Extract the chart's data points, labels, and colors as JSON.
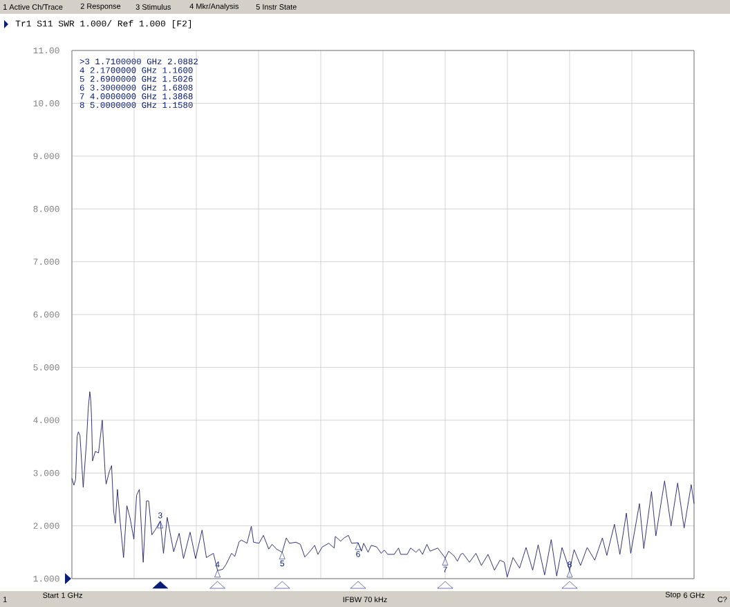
{
  "chart_data": {
    "type": "line",
    "title": "Tr1 S11 SWR 1.000/ Ref 1.000 [F2]",
    "xlim": [
      1,
      6
    ],
    "ylim": [
      1,
      11
    ],
    "xticks": [
      {
        "value": 1,
        "label": "1 GHz"
      },
      {
        "value": 1.5,
        "label": null
      },
      {
        "value": 2,
        "label": null
      },
      {
        "value": 2.5,
        "label": null
      },
      {
        "value": 3,
        "label": null
      },
      {
        "value": 3.5,
        "label": null
      },
      {
        "value": 4,
        "label": null
      },
      {
        "value": 4.5,
        "label": null
      },
      {
        "value": 5,
        "label": null
      },
      {
        "value": 5.5,
        "label": null
      },
      {
        "value": 6,
        "label": "6 GHz"
      }
    ],
    "yticks": [
      {
        "value": 1,
        "label": "1.000"
      },
      {
        "value": 2,
        "label": "2.000"
      },
      {
        "value": 3,
        "label": "3.000"
      },
      {
        "value": 4,
        "label": "4.000"
      },
      {
        "value": 5,
        "label": "5.000"
      },
      {
        "value": 6,
        "label": "6.000"
      },
      {
        "value": 7,
        "label": "7.000"
      },
      {
        "value": 8,
        "label": "8.000"
      },
      {
        "value": 9,
        "label": "9.000"
      },
      {
        "value": 10,
        "label": "10.00"
      },
      {
        "value": 11,
        "label": "11.00"
      }
    ],
    "grid": true,
    "series": [
      {
        "color": "#1c1c6a",
        "x": [
          1.0,
          1.016,
          1.03,
          1.042,
          1.052,
          1.065,
          1.091,
          1.117,
          1.131,
          1.144,
          1.152,
          1.158,
          1.166,
          1.188,
          1.214,
          1.244,
          1.268,
          1.275,
          1.301,
          1.319,
          1.336,
          1.349,
          1.366,
          1.389,
          1.415,
          1.442,
          1.468,
          1.498,
          1.52,
          1.542,
          1.573,
          1.599,
          1.617,
          1.643,
          1.669,
          1.71,
          1.736,
          1.766,
          1.818,
          1.862,
          1.897,
          1.95,
          1.994,
          2.046,
          2.081,
          2.137,
          2.17,
          2.186,
          2.213,
          2.239,
          2.283,
          2.309,
          2.344,
          2.363,
          2.407,
          2.442,
          2.46,
          2.504,
          2.539,
          2.582,
          2.609,
          2.644,
          2.69,
          2.723,
          2.749,
          2.801,
          2.836,
          2.872,
          2.907,
          2.951,
          2.977,
          3.012,
          3.064,
          3.108,
          3.117,
          3.16,
          3.187,
          3.222,
          3.248,
          3.3,
          3.327,
          3.345,
          3.38,
          3.406,
          3.45,
          3.485,
          3.511,
          3.538,
          3.59,
          3.625,
          3.643,
          3.695,
          3.722,
          3.765,
          3.791,
          3.818,
          3.853,
          3.879,
          3.94,
          4.0,
          4.028,
          4.072,
          4.098,
          4.125,
          4.142,
          4.195,
          4.247,
          4.291,
          4.344,
          4.396,
          4.44,
          4.475,
          4.498,
          4.545,
          4.598,
          4.65,
          4.703,
          4.747,
          4.799,
          4.852,
          4.896,
          4.939,
          5.0,
          5.036,
          5.088,
          5.141,
          5.202,
          5.263,
          5.299,
          5.36,
          5.404,
          5.456,
          5.491,
          5.561,
          5.596,
          5.658,
          5.693,
          5.763,
          5.815,
          5.868,
          5.92,
          5.977,
          6.0
        ],
        "values": [
          2.9,
          2.77,
          2.88,
          3.69,
          3.78,
          3.71,
          2.73,
          3.58,
          4.21,
          4.54,
          4.37,
          4.04,
          3.23,
          3.41,
          3.38,
          4.0,
          2.97,
          2.79,
          3.03,
          3.14,
          2.27,
          2.05,
          2.69,
          2.05,
          1.4,
          2.38,
          2.14,
          1.75,
          2.58,
          2.69,
          1.31,
          2.47,
          2.47,
          1.83,
          1.92,
          2.09,
          1.48,
          2.16,
          1.51,
          1.86,
          1.38,
          1.88,
          1.38,
          1.92,
          1.4,
          1.48,
          1.16,
          1.16,
          1.18,
          1.27,
          1.48,
          1.42,
          1.7,
          1.73,
          1.67,
          1.99,
          1.69,
          1.67,
          1.82,
          1.56,
          1.65,
          1.56,
          1.5,
          1.77,
          1.67,
          1.69,
          1.65,
          1.41,
          1.5,
          1.63,
          1.46,
          1.6,
          1.67,
          1.58,
          1.8,
          1.71,
          1.77,
          1.82,
          1.67,
          1.68,
          1.52,
          1.67,
          1.5,
          1.63,
          1.6,
          1.48,
          1.54,
          1.46,
          1.46,
          1.58,
          1.46,
          1.46,
          1.58,
          1.5,
          1.56,
          1.46,
          1.65,
          1.52,
          1.58,
          1.39,
          1.52,
          1.43,
          1.33,
          1.46,
          1.48,
          1.31,
          1.48,
          1.25,
          1.46,
          1.16,
          1.35,
          1.31,
          1.03,
          1.4,
          1.2,
          1.59,
          1.16,
          1.64,
          1.07,
          1.74,
          1.05,
          1.59,
          1.16,
          1.55,
          1.25,
          1.59,
          1.35,
          1.77,
          1.44,
          2.03,
          1.46,
          2.24,
          1.48,
          2.42,
          1.57,
          2.65,
          1.81,
          2.85,
          2.0,
          2.81,
          1.96,
          2.78,
          2.42
        ]
      }
    ],
    "annotations": [
      ">3 1.7100000 GHz 2.0882",
      "4 2.1700000 GHz 1.1600",
      "5 2.6900000 GHz 1.5026",
      "6 3.3000000 GHz 1.6808",
      "7 4.0000000 GHz 1.3868",
      "8 5.0000000 GHz 1.1580",
      {
        "text": "3",
        "x": 1.71,
        "y": 2.0882
      },
      {
        "text": "4",
        "x": 2.17,
        "y": 1.16
      },
      {
        "text": "5",
        "x": 2.69,
        "y": 1.5026
      },
      {
        "text": "6",
        "x": 3.3,
        "y": 1.6808
      },
      {
        "text": "7",
        "x": 4.0,
        "y": 1.3868
      },
      {
        "text": "8",
        "x": 5.0,
        "y": 1.158
      },
      "1 Active Ch/Trace",
      "2 Response",
      "3 Stimulus",
      "4 Mkr/Analysis",
      "5 Instr State",
      "1",
      "Start",
      "IFBW 70 kHz",
      "Stop",
      "C?"
    ]
  }
}
